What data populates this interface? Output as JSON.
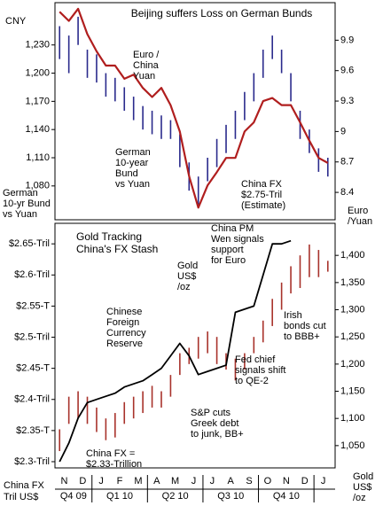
{
  "chart_data": [
    {
      "type": "line",
      "title": "Beijing suffers Loss on German Bunds",
      "y_label": "CNY",
      "y_axis_label": [
        "German",
        "10-yr Bund",
        "vs Yuan"
      ],
      "y2_axis_label": [
        "Euro",
        "/Yuan"
      ],
      "ylim": [
        1044,
        1275
      ],
      "yticks": [
        {
          "value": 1080,
          "label": "1,080"
        },
        {
          "value": 1110,
          "label": "1,110"
        },
        {
          "value": 1140,
          "label": "1,140"
        },
        {
          "value": 1170,
          "label": "1,170"
        },
        {
          "value": 1200,
          "label": "1,200"
        },
        {
          "value": 1230,
          "label": "1,230"
        }
      ],
      "y2lim": [
        8.13,
        10.27
      ],
      "y2ticks": [
        8.4,
        8.7,
        9.0,
        9.3,
        9.6,
        9.9
      ],
      "series": [
        {
          "name": "German 10-year Bund vs Yuan",
          "kind": "range",
          "color": "#2a2a8c",
          "high": [
            1250,
            1240,
            1260,
            1225,
            1220,
            1200,
            1195,
            1185,
            1175,
            1165,
            1160,
            1155,
            1150,
            1135,
            1105,
            1090,
            1110,
            1130,
            1145,
            1160,
            1180,
            1200,
            1225,
            1240,
            1225,
            1200,
            1160,
            1140,
            1120,
            1110
          ],
          "low": [
            1215,
            1200,
            1230,
            1195,
            1190,
            1175,
            1170,
            1160,
            1150,
            1140,
            1135,
            1130,
            1130,
            1100,
            1075,
            1060,
            1085,
            1100,
            1115,
            1130,
            1150,
            1170,
            1195,
            1215,
            1200,
            1170,
            1130,
            1115,
            1095,
            1090
          ]
        },
        {
          "name": "Euro / China Yuan",
          "axis": "y2",
          "color": "#b01e1e",
          "values": [
            10.18,
            10.09,
            10.21,
            9.96,
            9.79,
            9.65,
            9.65,
            9.52,
            9.56,
            9.43,
            9.34,
            9.43,
            9.26,
            9.0,
            8.56,
            8.25,
            8.47,
            8.6,
            8.74,
            8.74,
            9.0,
            9.09,
            9.3,
            9.33,
            9.26,
            9.26,
            9.09,
            8.91,
            8.74,
            8.69
          ]
        }
      ],
      "annotations": [
        {
          "lines": [
            "Euro /",
            "China",
            "Yuan"
          ],
          "color": "#b01e1e"
        },
        {
          "lines": [
            "German",
            "10-year",
            "Bund",
            "vs Yuan"
          ],
          "color": "#2a2a8c"
        },
        {
          "lines": [
            "China FX",
            "$2.75-Tril",
            "(Estimate)"
          ],
          "color": "#000000"
        },
        {
          "lines": [
            "China PM",
            "Wen signals",
            "support",
            "for Euro"
          ],
          "color": "#000000"
        }
      ]
    },
    {
      "type": "line",
      "title": [
        "Gold Tracking",
        "China's FX Stash"
      ],
      "y_axis_label": [
        "China FX",
        "Tril US$"
      ],
      "y2_axis_label": [
        "Gold",
        "US$",
        "/oz"
      ],
      "categories": [
        "N",
        null,
        "D",
        null,
        "J",
        null,
        "F",
        null,
        "M",
        null,
        "A",
        null,
        "M",
        null,
        "J",
        null,
        "J",
        null,
        "A",
        null,
        "S",
        null,
        "O",
        null,
        "N",
        null,
        "D",
        null,
        "J",
        null
      ],
      "quarters": [
        "Q4 09",
        "Q1 10",
        "Q2 10",
        "Q3 10",
        "Q4 10"
      ],
      "ylim": [
        2.29,
        2.683
      ],
      "yticks": [
        {
          "value": 2.3,
          "label": "$2.3-Tril"
        },
        {
          "value": 2.35,
          "label": "$2.35-T"
        },
        {
          "value": 2.4,
          "label": "$2.4-Tril"
        },
        {
          "value": 2.45,
          "label": "$2.45-T"
        },
        {
          "value": 2.5,
          "label": "$2.5-Tril"
        },
        {
          "value": 2.55,
          "label": "$2.55-T"
        },
        {
          "value": 2.6,
          "label": "$2.6-Tril"
        },
        {
          "value": 2.65,
          "label": "$2.65-Tril"
        }
      ],
      "y2lim": [
        1009,
        1459
      ],
      "y2ticks": [
        {
          "value": 1050,
          "label": "1,050"
        },
        {
          "value": 1100,
          "label": "1,100"
        },
        {
          "value": 1150,
          "label": "1,150"
        },
        {
          "value": 1200,
          "label": "1,200"
        },
        {
          "value": 1250,
          "label": "1,250"
        },
        {
          "value": 1300,
          "label": "1,300"
        },
        {
          "value": 1350,
          "label": "1,350"
        },
        {
          "value": 1400,
          "label": "1,400"
        }
      ],
      "series": [
        {
          "name": "Gold US$/oz",
          "kind": "range",
          "axis": "y2",
          "color": "#a8322b",
          "high": [
            1080,
            1140,
            1150,
            1140,
            1120,
            1100,
            1110,
            1130,
            1140,
            1150,
            1160,
            1150,
            1180,
            1220,
            1230,
            1250,
            1260,
            1250,
            1220,
            1210,
            1220,
            1250,
            1280,
            1320,
            1350,
            1380,
            1400,
            1420,
            1410,
            1390
          ],
          "low": [
            1040,
            1090,
            1100,
            1090,
            1075,
            1060,
            1065,
            1090,
            1100,
            1110,
            1120,
            1120,
            1140,
            1180,
            1200,
            1210,
            1220,
            1200,
            1190,
            1170,
            1190,
            1220,
            1240,
            1270,
            1300,
            1330,
            1340,
            1360,
            1360,
            1370
          ]
        },
        {
          "name": "Chinese Foreign Currency Reserve",
          "color": "#000000",
          "values": [
            2.3,
            2.33,
            2.37,
            2.395,
            2.4,
            2.405,
            2.41,
            2.42,
            2.425,
            2.43,
            2.44,
            2.45,
            2.47,
            2.49,
            2.47,
            2.44,
            2.445,
            2.45,
            2.455,
            2.54,
            2.545,
            2.55,
            2.6,
            2.65,
            2.65,
            2.655,
            null,
            null,
            null,
            null
          ]
        }
      ],
      "annotations": [
        {
          "lines": [
            "Gold",
            "US$",
            "/oz"
          ],
          "color": "#b01e1e"
        },
        {
          "lines": [
            "Chinese",
            "Foreign",
            "Currency",
            "Reserve"
          ],
          "color": "#000000"
        },
        {
          "lines": [
            "Irish",
            "bonds cut",
            "to BBB+"
          ],
          "color": "#000000"
        },
        {
          "lines": [
            "Fed chief",
            "signals shift",
            "to QE-2"
          ],
          "color": "#000000"
        },
        {
          "lines": [
            "S&P cuts",
            "Greek debt",
            "to junk, BB+"
          ],
          "color": "#000000"
        },
        {
          "lines": [
            "China FX =",
            "$2.33-Trillion"
          ],
          "color": "#000000"
        }
      ]
    }
  ]
}
